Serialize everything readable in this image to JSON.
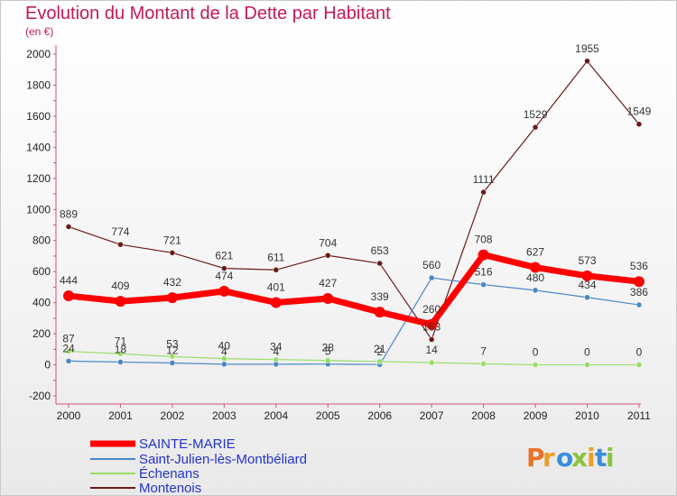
{
  "chart_data": {
    "type": "line",
    "title": "Evolution du Montant de la Dette par Habitant",
    "unit": "(en €)",
    "x": [
      "2000",
      "2001",
      "2002",
      "2003",
      "2004",
      "2005",
      "2006",
      "2007",
      "2008",
      "2009",
      "2010",
      "2011"
    ],
    "ylim": [
      -200,
      2000
    ],
    "yticks": [
      -200,
      0,
      200,
      400,
      600,
      800,
      1000,
      1200,
      1400,
      1600,
      1800,
      2000
    ],
    "grid": false,
    "legend_position": "bottom-left",
    "series": [
      {
        "name": "SAINTE-MARIE",
        "color": "#ff0000",
        "values": [
          444,
          409,
          432,
          474,
          401,
          427,
          339,
          260,
          708,
          627,
          573,
          536
        ]
      },
      {
        "name": "Saint-Julien-lès-Montbéliard",
        "color": "#4a86c8",
        "values": [
          24,
          18,
          12,
          4,
          4,
          5,
          2,
          560,
          516,
          480,
          434,
          386
        ]
      },
      {
        "name": "Échenans",
        "color": "#99dd66",
        "values": [
          87,
          71,
          53,
          40,
          34,
          28,
          21,
          14,
          7,
          0,
          0,
          0
        ]
      },
      {
        "name": "Montenois",
        "color": "#6b1a1a",
        "values": [
          889,
          774,
          721,
          621,
          611,
          704,
          653,
          163,
          1111,
          1529,
          1955,
          1549
        ]
      }
    ]
  },
  "logo": {
    "text": "Proxiti"
  }
}
